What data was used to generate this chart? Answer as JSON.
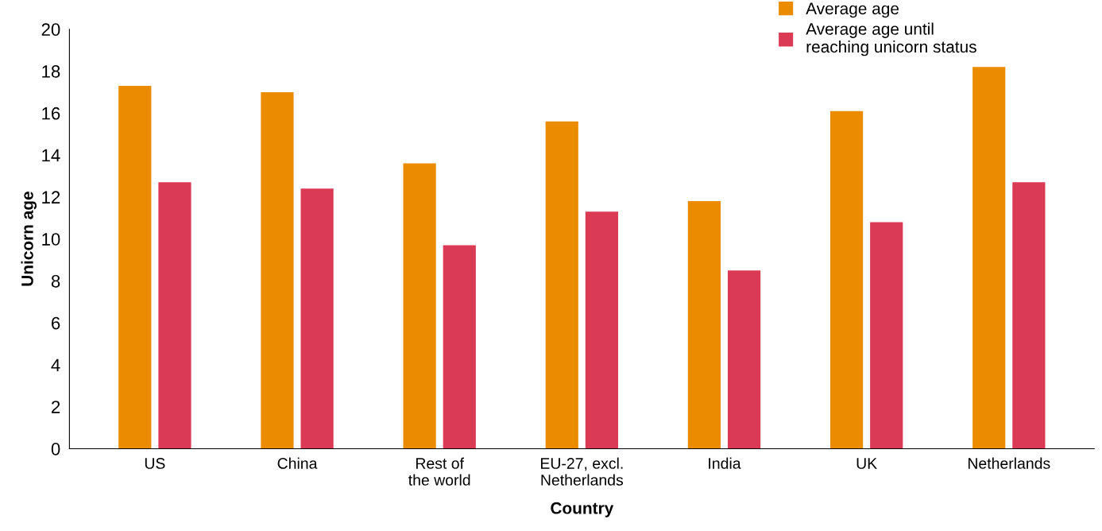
{
  "chart_data": {
    "type": "bar",
    "xlabel": "Country",
    "ylabel": "Unicorn age",
    "categories": [
      "US",
      "China",
      "Rest of\nthe world",
      "EU-27, excl.\nNetherlands",
      "India",
      "UK",
      "Netherlands"
    ],
    "series": [
      {
        "name": "Average age",
        "color": "#eb8c00",
        "values": [
          17.3,
          17.0,
          13.6,
          15.6,
          11.8,
          16.1,
          18.2
        ]
      },
      {
        "name": "Average age until\nreaching unicorn status",
        "color": "#db3a55",
        "values": [
          12.7,
          12.4,
          9.7,
          11.3,
          8.5,
          10.8,
          12.7
        ]
      }
    ],
    "ylim": [
      0,
      20
    ],
    "yticks": [
      0,
      2,
      4,
      6,
      8,
      10,
      12,
      14,
      16,
      18,
      20
    ],
    "grid": false,
    "legend": "top right"
  }
}
